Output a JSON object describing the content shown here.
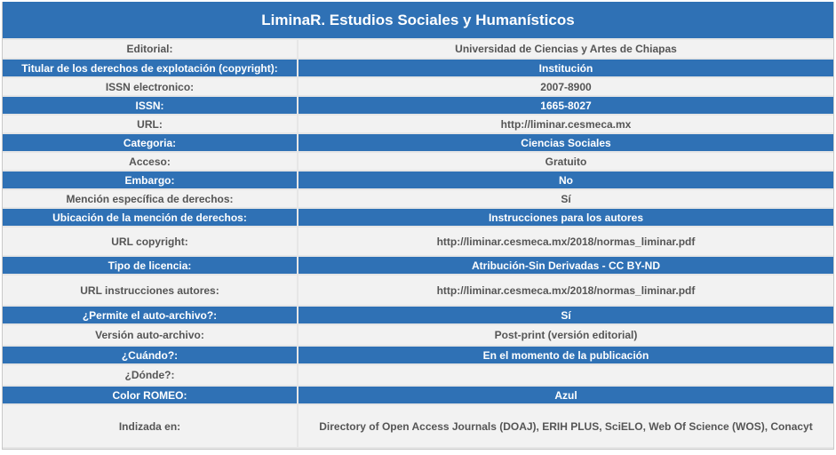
{
  "journal": {
    "title": "LiminaR. Estudios Sociales y Humanísticos"
  },
  "rows": [
    {
      "label": "Editorial:",
      "value": "Universidad de Ciencias y Artes de Chiapas"
    },
    {
      "label": "Titular de los derechos de explotación (copyright):",
      "value": "Institución"
    },
    {
      "label": "ISSN electronico:",
      "value": "2007-8900"
    },
    {
      "label": "ISSN:",
      "value": "1665-8027"
    },
    {
      "label": "URL:",
      "value": "http://liminar.cesmeca.mx"
    },
    {
      "label": "Categoria:",
      "value": "Ciencias Sociales"
    },
    {
      "label": "Acceso:",
      "value": "Gratuito"
    },
    {
      "label": "Embargo:",
      "value": "No"
    },
    {
      "label": "Mención específica de derechos:",
      "value": "Sí"
    },
    {
      "label": "Ubicación de la mención de derechos:",
      "value": "Instrucciones para los autores"
    },
    {
      "label": "URL copyright:",
      "value": "http://liminar.cesmeca.mx/2018/normas_liminar.pdf"
    },
    {
      "label": "Tipo de licencia:",
      "value": "Atribución-Sin Derivadas - CC BY-ND"
    },
    {
      "label": "URL instrucciones autores:",
      "value": "http://liminar.cesmeca.mx/2018/normas_liminar.pdf"
    },
    {
      "label": "¿Permite el auto-archivo?:",
      "value": "Sí"
    },
    {
      "label": "Versión auto-archivo:",
      "value": "Post-print (versión editorial)"
    },
    {
      "label": "¿Cuándo?:",
      "value": "En el momento de la publicación"
    },
    {
      "label": "¿Dónde?:",
      "value": ""
    },
    {
      "label": "Color ROMEO:",
      "value": "Azul"
    },
    {
      "label": "Indizada en:",
      "value": "Directory of Open Access Journals (DOAJ), ERIH PLUS, SciELO, Web Of Science (WOS), Conacyt"
    }
  ],
  "colors": {
    "header_blue": "#2f71b5",
    "row_light": "#f2f2f2",
    "text_gray": "#555555"
  }
}
